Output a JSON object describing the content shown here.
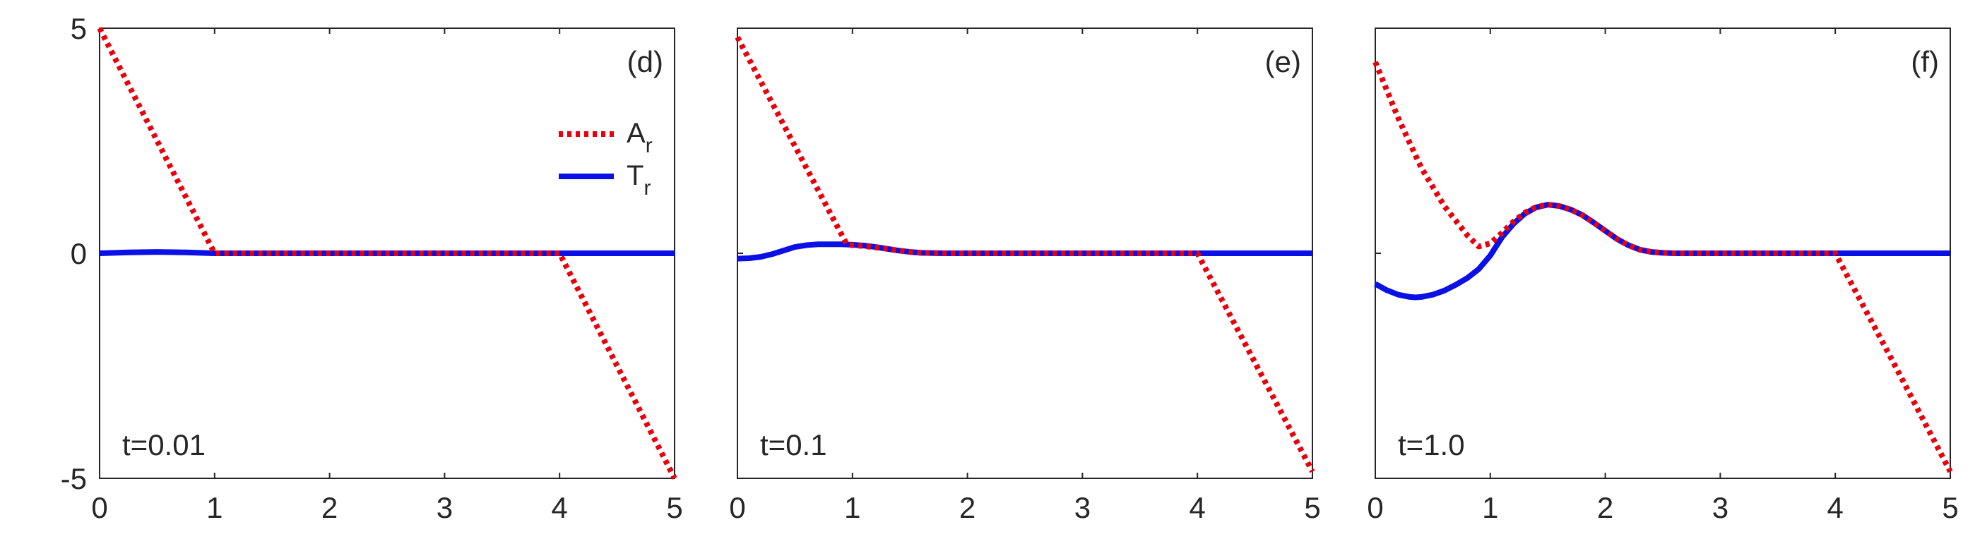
{
  "chart_data": [
    {
      "type": "line",
      "panel_label": "(d)",
      "time_label": "t=0.01",
      "xlim": [
        0,
        5
      ],
      "ylim": [
        -5,
        5
      ],
      "x_ticks": [
        "0",
        "1",
        "2",
        "3",
        "4",
        "5"
      ],
      "y_ticks": [
        "5",
        "0",
        "-5"
      ],
      "legend": {
        "placement": "top-right",
        "entries": [
          {
            "main": "A",
            "sub": "r",
            "style": "dotted",
            "color": "#e8000b"
          },
          {
            "main": "T",
            "sub": "r",
            "style": "solid",
            "color": "#0a10e6"
          }
        ]
      },
      "series": [
        {
          "name": "A_r",
          "color": "#e8000b",
          "style": "dotted",
          "x": [
            0,
            1,
            1.5,
            2,
            2.5,
            3,
            3.5,
            4,
            5
          ],
          "y": [
            5,
            0,
            0,
            0,
            0,
            0,
            0,
            0,
            -5
          ]
        },
        {
          "name": "T_r",
          "color": "#0a10e6",
          "style": "solid",
          "x": [
            0,
            0.25,
            0.5,
            0.75,
            1,
            1.5,
            2,
            2.5,
            3,
            3.5,
            4,
            4.5,
            5
          ],
          "y": [
            0,
            0.02,
            0.03,
            0.02,
            0,
            0,
            0,
            0,
            0,
            0,
            0,
            0,
            0
          ]
        }
      ]
    },
    {
      "type": "line",
      "panel_label": "(e)",
      "time_label": "t=0.1",
      "xlim": [
        0,
        5
      ],
      "ylim": [
        -5,
        5
      ],
      "x_ticks": [
        "0",
        "1",
        "2",
        "3",
        "4",
        "5"
      ],
      "series": [
        {
          "name": "A_r",
          "color": "#e8000b",
          "style": "dotted",
          "x": [
            0,
            0.95,
            1.0,
            1.1,
            1.2,
            1.3,
            1.4,
            1.5,
            1.6,
            1.8,
            2.0,
            2.5,
            3,
            3.5,
            4,
            5
          ],
          "y": [
            4.8,
            0.2,
            0.18,
            0.16,
            0.13,
            0.1,
            0.06,
            0.03,
            0.01,
            0,
            0,
            0,
            0,
            0,
            0,
            -4.85
          ]
        },
        {
          "name": "T_r",
          "color": "#0a10e6",
          "style": "solid",
          "x": [
            0,
            0.1,
            0.2,
            0.3,
            0.4,
            0.5,
            0.6,
            0.7,
            0.8,
            0.9,
            1.0,
            1.1,
            1.2,
            1.3,
            1.4,
            1.5,
            1.6,
            1.8,
            2.0,
            2.5,
            3,
            3.5,
            4,
            4.5,
            5
          ],
          "y": [
            -0.12,
            -0.11,
            -0.08,
            -0.02,
            0.06,
            0.14,
            0.18,
            0.2,
            0.2,
            0.2,
            0.19,
            0.17,
            0.14,
            0.1,
            0.06,
            0.03,
            0.01,
            0,
            0,
            0,
            0,
            0,
            0,
            0,
            0
          ]
        }
      ]
    },
    {
      "type": "line",
      "panel_label": "(f)",
      "time_label": "t=1.0",
      "xlim": [
        0,
        5
      ],
      "ylim": [
        -5,
        5
      ],
      "x_ticks": [
        "0",
        "1",
        "2",
        "3",
        "4",
        "5"
      ],
      "series": [
        {
          "name": "A_r",
          "color": "#e8000b",
          "style": "dotted",
          "x": [
            0,
            0.2,
            0.4,
            0.6,
            0.8,
            0.9,
            1.0,
            1.1,
            1.2,
            1.3,
            1.4,
            1.5,
            1.6,
            1.7,
            1.8,
            1.9,
            2.0,
            2.1,
            2.2,
            2.3,
            2.4,
            2.5,
            2.6,
            2.8,
            3.0,
            3.5,
            4.0,
            4.5,
            5.0
          ],
          "y": [
            4.25,
            3.0,
            1.9,
            1.05,
            0.4,
            0.15,
            0.22,
            0.45,
            0.7,
            0.9,
            1.03,
            1.08,
            1.05,
            0.97,
            0.85,
            0.68,
            0.5,
            0.32,
            0.18,
            0.08,
            0.03,
            0.01,
            0,
            0,
            0,
            0,
            0,
            -2.4,
            -4.85
          ]
        },
        {
          "name": "T_r",
          "color": "#0a10e6",
          "style": "solid",
          "x": [
            0,
            0.1,
            0.2,
            0.3,
            0.35,
            0.4,
            0.5,
            0.6,
            0.7,
            0.8,
            0.9,
            1.0,
            1.1,
            1.2,
            1.3,
            1.4,
            1.5,
            1.6,
            1.7,
            1.8,
            1.9,
            2.0,
            2.1,
            2.2,
            2.3,
            2.4,
            2.5,
            2.6,
            2.8,
            3.0,
            3.5,
            4.0,
            4.5,
            5.0
          ],
          "y": [
            -0.68,
            -0.82,
            -0.92,
            -0.97,
            -0.98,
            -0.97,
            -0.92,
            -0.83,
            -0.7,
            -0.55,
            -0.35,
            -0.05,
            0.35,
            0.65,
            0.88,
            1.02,
            1.08,
            1.05,
            0.97,
            0.85,
            0.68,
            0.5,
            0.32,
            0.18,
            0.08,
            0.03,
            0.01,
            0,
            0,
            0,
            0,
            0,
            0,
            0
          ]
        }
      ]
    }
  ]
}
